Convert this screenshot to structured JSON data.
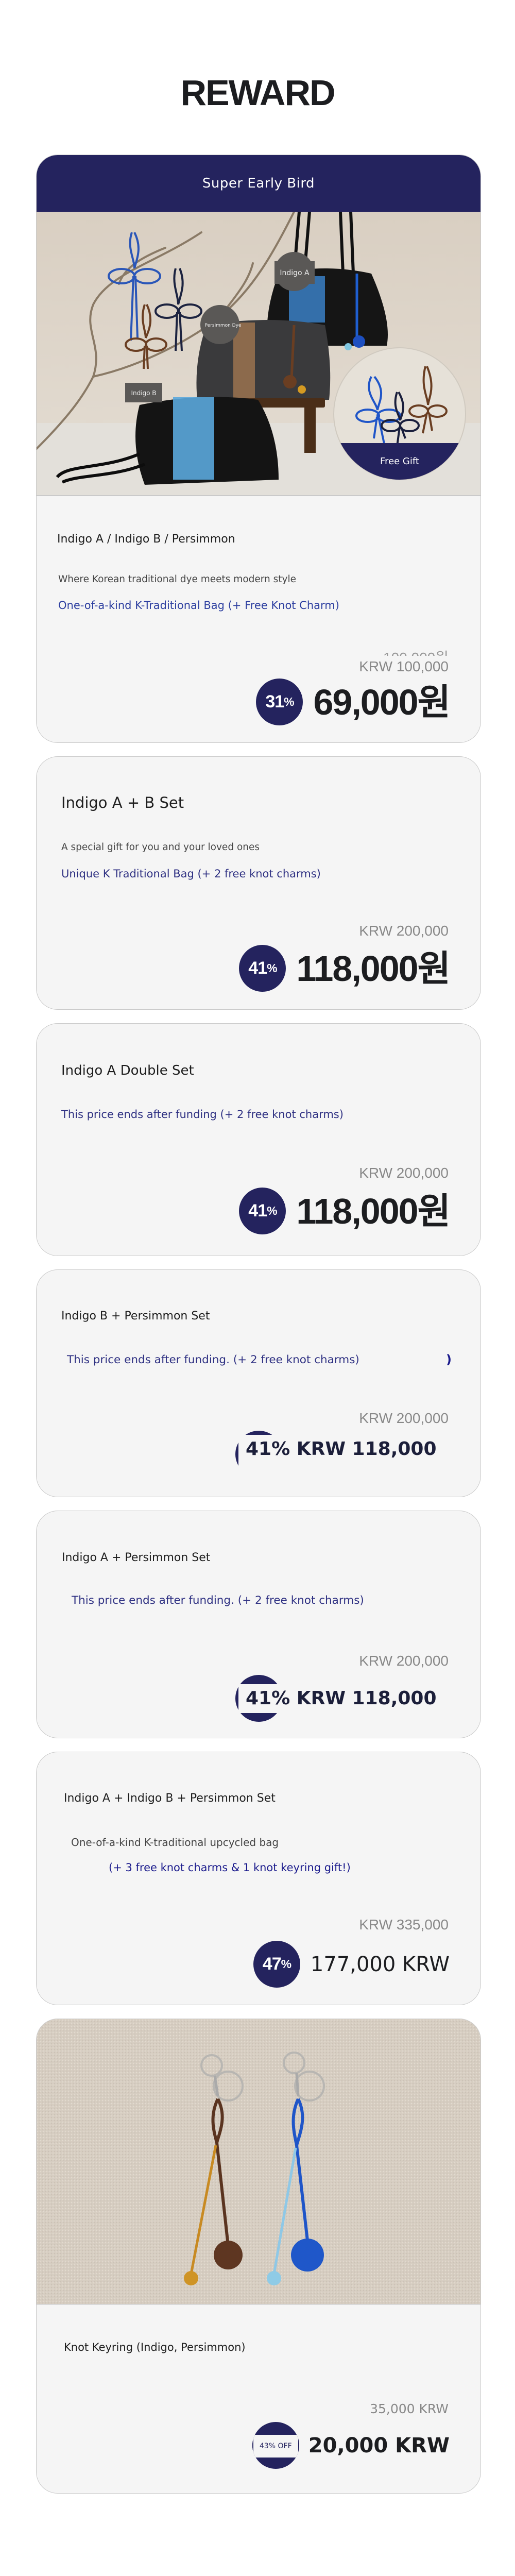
{
  "heading": "REWARD",
  "colors": {
    "navy": "#24235e",
    "card_bg": "#f5f5f5",
    "link_blue": "#2e3082"
  },
  "cards": [
    {
      "header": "Super Early Bird",
      "image_labels": [
        "Indigo A",
        "Persimmon Dye",
        "Indigo B"
      ],
      "gift_label": "Free Gift",
      "title": "Indigo A / Indigo B / Persimmon",
      "subtitle": "Where Korean traditional dye meets modern style",
      "highlight": "One-of-a-kind K-Traditional Bag (+ Free Knot Charm)",
      "old_price_overlap": "100,000원",
      "old_price": "KRW 100,000",
      "discount": "31",
      "discount_unit": "%",
      "price": "69,000원"
    },
    {
      "title": "Indigo A + B Set",
      "subtitle": "A special gift for you and your loved ones",
      "highlight": "Unique K Traditional Bag (+ 2 free knot charms)",
      "old_price": "KRW 200,000",
      "discount": "41",
      "discount_unit": "%",
      "price": "118,000원"
    },
    {
      "title": "Indigo A Double Set",
      "highlight": "This price ends after funding (+ 2 free knot charms)",
      "old_price": "KRW 200,000",
      "discount": "41",
      "discount_unit": "%",
      "price": "118,000원"
    },
    {
      "title": "Indigo B + Persimmon Set",
      "highlight": "This price ends after funding. (+ 2 free knot charms)",
      "stray_mark": ")",
      "old_price": "KRW 200,000",
      "price": "41% KRW 118,000"
    },
    {
      "title": "Indigo A + Persimmon Set",
      "highlight": "This price ends after funding. (+ 2 free knot charms)",
      "old_price": "KRW 200,000",
      "price": "41% KRW 118,000"
    },
    {
      "title": "Indigo A + Indigo B + Persimmon Set",
      "subtitle": "One-of-a-kind K-traditional upcycled bag",
      "highlight": "(+ 3 free knot charms & 1 knot keyring gift!)",
      "old_price": "KRW 335,000",
      "discount": "47",
      "discount_unit": "%",
      "price": "177,000 KRW"
    },
    {
      "title": "Knot Keyring (Indigo, Persimmon)",
      "old_price": "35,000 KRW",
      "discount": "43% OFF",
      "price": "20,000 KRW"
    }
  ]
}
